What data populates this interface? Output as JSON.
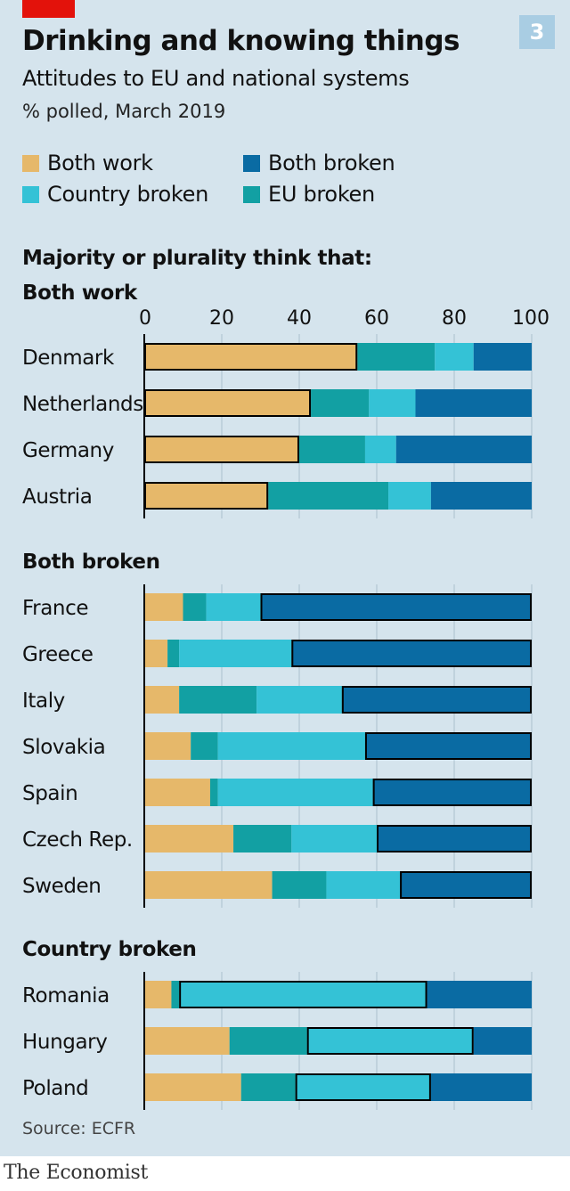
{
  "badge": "3",
  "chart_data": {
    "type": "bar",
    "stacked": true,
    "orientation": "horizontal",
    "title": "Drinking and knowing things",
    "subtitle": "Attitudes to EU and national systems",
    "note": "% polled, March 2019",
    "heading": "Majority or plurality think that:",
    "xlim": [
      0,
      100
    ],
    "xticks": [
      0,
      20,
      40,
      60,
      80,
      100
    ],
    "legend": [
      {
        "key": "both_work",
        "label": "Both work"
      },
      {
        "key": "both_broken",
        "label": "Both broken"
      },
      {
        "key": "country_broken",
        "label": "Country broken"
      },
      {
        "key": "eu_broken",
        "label": "EU broken"
      }
    ],
    "series_order": [
      "both_work",
      "eu_broken",
      "country_broken",
      "both_broken"
    ],
    "colors": {
      "both_work": "#e6b86a",
      "eu_broken": "#12a0a3",
      "country_broken": "#34c2d6",
      "both_broken": "#0a6ba3"
    },
    "groups": [
      {
        "title": "Both work",
        "highlight": "both_work",
        "rows": [
          {
            "country": "Denmark",
            "values": [
              55,
              20,
              10,
              15
            ]
          },
          {
            "country": "Netherlands",
            "values": [
              43,
              15,
              12,
              30
            ]
          },
          {
            "country": "Germany",
            "values": [
              40,
              17,
              8,
              35
            ]
          },
          {
            "country": "Austria",
            "values": [
              32,
              31,
              11,
              26
            ]
          }
        ]
      },
      {
        "title": "Both broken",
        "highlight": "both_broken",
        "rows": [
          {
            "country": "France",
            "values": [
              10,
              6,
              14,
              70
            ]
          },
          {
            "country": "Greece",
            "values": [
              6,
              3,
              29,
              62
            ]
          },
          {
            "country": "Italy",
            "values": [
              9,
              20,
              22,
              49
            ]
          },
          {
            "country": "Slovakia",
            "values": [
              12,
              7,
              38,
              43
            ]
          },
          {
            "country": "Spain",
            "values": [
              17,
              2,
              40,
              41
            ]
          },
          {
            "country": "Czech Rep.",
            "values": [
              23,
              15,
              22,
              40
            ]
          },
          {
            "country": "Sweden",
            "values": [
              33,
              14,
              19,
              34
            ]
          }
        ]
      },
      {
        "title": "Country broken",
        "highlight": "country_broken",
        "rows": [
          {
            "country": "Romania",
            "values": [
              7,
              2,
              64,
              27
            ]
          },
          {
            "country": "Hungary",
            "values": [
              22,
              20,
              43,
              15
            ]
          },
          {
            "country": "Poland",
            "values": [
              25,
              14,
              35,
              26
            ]
          }
        ]
      }
    ]
  },
  "source": "Source: ECFR",
  "logo": "The Economist"
}
